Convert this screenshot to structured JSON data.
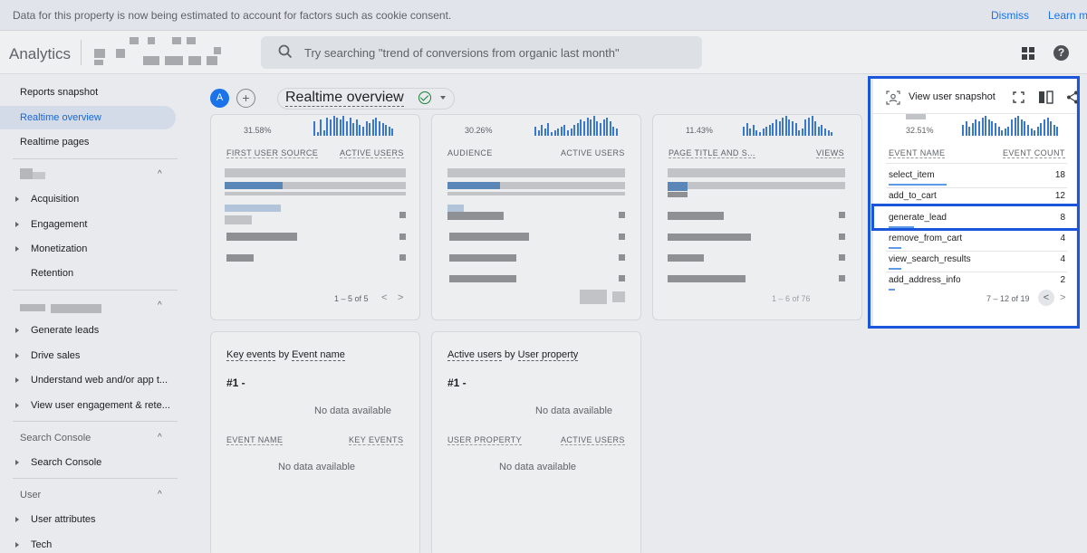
{
  "banner": {
    "message": "Data for this property is now being estimated to account for factors such as cookie consent.",
    "dismiss": "Dismiss",
    "learn_more": "Learn m"
  },
  "header": {
    "app_name": "Analytics",
    "search_placeholder": "Try searching \"trend of conversions from organic last month\"",
    "help_glyph": "?"
  },
  "sidebar": {
    "top_items": [
      "Reports snapshot",
      "Realtime overview",
      "Realtime pages"
    ],
    "active_index": 1,
    "life_cycle": [
      "Acquisition",
      "Engagement",
      "Monetization",
      "Retention"
    ],
    "business_objectives": [
      "Generate leads",
      "Drive sales",
      "Understand web and/or app t...",
      "View user engagement & rete..."
    ],
    "search_console_title": "Search Console",
    "search_console_items": [
      "Search Console"
    ],
    "user_title": "User",
    "user_items": [
      "User attributes",
      "Tech"
    ],
    "chevron_glyph": "^",
    "arrow_glyph": "▸"
  },
  "toolbar": {
    "avatar_letter": "A",
    "add_glyph": "+",
    "title": "Realtime overview"
  },
  "cards": {
    "card1": {
      "pct": "31.58%",
      "col1": "FIRST USER SOURCE",
      "col2": "ACTIVE USERS",
      "pager": "1 – 5 of 5"
    },
    "card2": {
      "pct": "30.26%",
      "col1": "AUDIENCE",
      "col2": "ACTIVE USERS"
    },
    "card3": {
      "pct": "11.43%",
      "col1": "PAGE TITLE AND S...",
      "col2": "VIEWS",
      "pager": "1 – 6 of 76"
    },
    "key_events": {
      "title_a": "Key events",
      "title_by": "by",
      "title_b": "Event name",
      "rank": "#1 -",
      "nodata": "No data available",
      "col1": "EVENT NAME",
      "col2": "KEY EVENTS",
      "nodata2": "No data available"
    },
    "user_property": {
      "title_a": "Active users",
      "title_by": "by",
      "title_b": "User property",
      "rank": "#1 -",
      "nodata": "No data available",
      "col1": "USER PROPERTY",
      "col2": "ACTIVE USERS",
      "nodata2": "No data available"
    }
  },
  "pager_glyphs": {
    "prev": "<",
    "next": ">"
  },
  "snapshot_panel": {
    "button": "View user snapshot",
    "pct": "32.51%",
    "col1": "EVENT NAME",
    "col2": "EVENT COUNT",
    "rows": [
      {
        "name": "select_item",
        "count": "18",
        "fill": 1.0
      },
      {
        "name": "add_to_cart",
        "count": "12",
        "fill": 0.667
      },
      {
        "name": "generate_lead",
        "count": "8",
        "fill": 0.444
      },
      {
        "name": "remove_from_cart",
        "count": "4",
        "fill": 0.222
      },
      {
        "name": "view_search_results",
        "count": "4",
        "fill": 0.222
      },
      {
        "name": "add_address_info",
        "count": "2",
        "fill": 0.111
      }
    ],
    "pager": "7 – 12 of 19"
  },
  "colors": {
    "accent": "#1a73e8",
    "highlight": "#1a56db",
    "bar": "#3b78c8"
  }
}
